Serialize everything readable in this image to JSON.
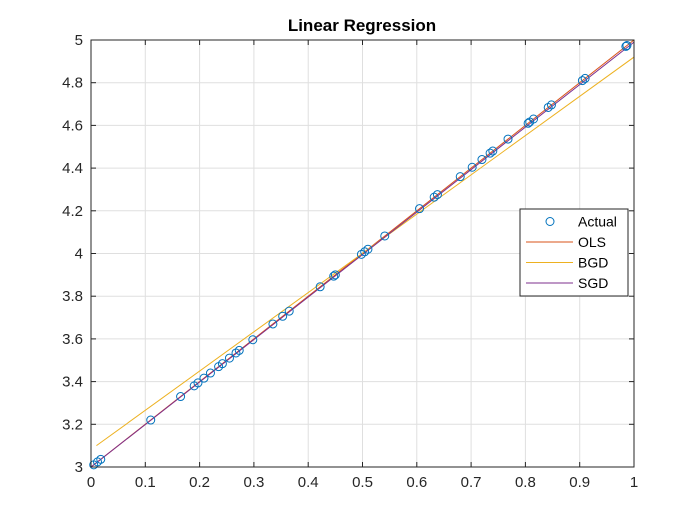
{
  "chart_data": {
    "type": "scatter",
    "title": "Linear Regression",
    "xlabel": "",
    "ylabel": "",
    "xlim": [
      0,
      1
    ],
    "ylim": [
      3,
      5
    ],
    "xticks": [
      0,
      0.1,
      0.2,
      0.3,
      0.4,
      0.5,
      0.6,
      0.7,
      0.8,
      0.9,
      1
    ],
    "xtick_labels": [
      "0",
      "0.1",
      "0.2",
      "0.3",
      "0.4",
      "0.5",
      "0.6",
      "0.7",
      "0.8",
      "0.9",
      "1"
    ],
    "yticks": [
      3,
      3.2,
      3.4,
      3.6,
      3.8,
      4,
      4.2,
      4.4,
      4.6,
      4.8,
      5
    ],
    "ytick_labels": [
      "3",
      "3.2",
      "3.4",
      "3.6",
      "3.8",
      "4",
      "4.2",
      "4.4",
      "4.6",
      "4.8",
      "5"
    ],
    "grid": true,
    "legend_position": "right",
    "series": [
      {
        "name": "Actual",
        "kind": "scatter",
        "marker": "circle",
        "color": "#0072BD",
        "x": [
          0.005,
          0.012,
          0.018,
          0.11,
          0.165,
          0.19,
          0.197,
          0.208,
          0.22,
          0.235,
          0.242,
          0.255,
          0.267,
          0.273,
          0.298,
          0.335,
          0.353,
          0.365,
          0.422,
          0.447,
          0.45,
          0.498,
          0.504,
          0.51,
          0.541,
          0.605,
          0.632,
          0.638,
          0.68,
          0.702,
          0.72,
          0.735,
          0.74,
          0.768,
          0.805,
          0.808,
          0.815,
          0.842,
          0.848,
          0.905,
          0.91,
          0.985,
          0.987
        ],
        "y": [
          3.01,
          3.024,
          3.036,
          3.22,
          3.33,
          3.38,
          3.394,
          3.416,
          3.44,
          3.47,
          3.484,
          3.51,
          3.534,
          3.546,
          3.596,
          3.67,
          3.706,
          3.73,
          3.844,
          3.894,
          3.9,
          3.996,
          4.008,
          4.02,
          4.082,
          4.21,
          4.264,
          4.276,
          4.36,
          4.404,
          4.44,
          4.47,
          4.48,
          4.536,
          4.61,
          4.616,
          4.63,
          4.684,
          4.696,
          4.81,
          4.82,
          4.97,
          4.974
        ]
      },
      {
        "name": "OLS",
        "kind": "line",
        "color": "#D95319",
        "x": [
          0,
          1
        ],
        "y": [
          3.0,
          5.0
        ]
      },
      {
        "name": "BGD",
        "kind": "line",
        "color": "#EDB120",
        "x": [
          0.01,
          1
        ],
        "y": [
          3.1,
          4.92
        ]
      },
      {
        "name": "SGD",
        "kind": "line",
        "color": "#7E2F8E",
        "x": [
          0,
          1
        ],
        "y": [
          3.0,
          4.99
        ]
      }
    ]
  }
}
